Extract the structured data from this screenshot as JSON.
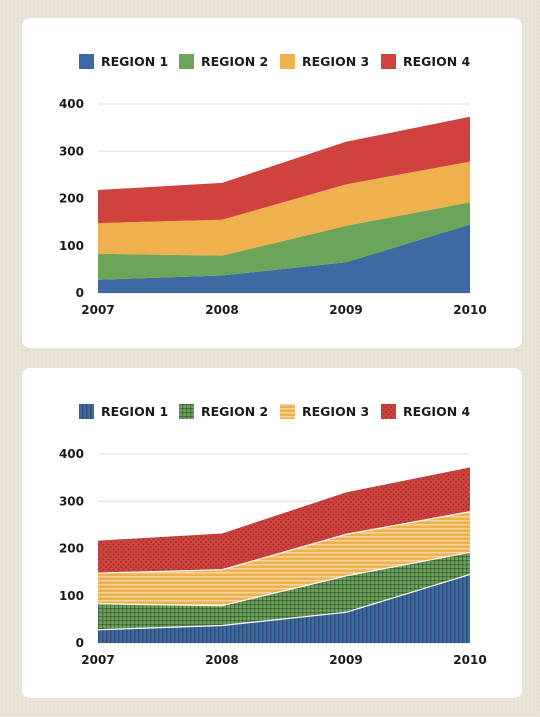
{
  "chart_data": [
    {
      "type": "area",
      "stacked": true,
      "style": "solid",
      "categories": [
        "2007",
        "2008",
        "2009",
        "2010"
      ],
      "series": [
        {
          "name": "REGION 1",
          "color": "#3d6aa3",
          "values": [
            28,
            37,
            65,
            145
          ]
        },
        {
          "name": "REGION 2",
          "color": "#6aa55a",
          "values": [
            55,
            42,
            77,
            47
          ]
        },
        {
          "name": "REGION 3",
          "color": "#efb14d",
          "values": [
            65,
            76,
            88,
            86
          ]
        },
        {
          "name": "REGION 4",
          "color": "#d0423e",
          "values": [
            70,
            78,
            90,
            95
          ]
        }
      ],
      "ylim": [
        0,
        400
      ],
      "yticks": [
        "0",
        "100",
        "200",
        "300",
        "400"
      ],
      "grid": true,
      "legend": "top"
    },
    {
      "type": "area",
      "stacked": true,
      "style": "patterned",
      "categories": [
        "2007",
        "2008",
        "2009",
        "2010"
      ],
      "series": [
        {
          "name": "REGION 1",
          "color": "#3d6aa3",
          "pattern": "vertical-lines",
          "values": [
            28,
            37,
            65,
            145
          ]
        },
        {
          "name": "REGION 2",
          "color": "#6aa55a",
          "pattern": "grid",
          "values": [
            55,
            42,
            77,
            47
          ]
        },
        {
          "name": "REGION 3",
          "color": "#efb14d",
          "pattern": "horizontal-lines",
          "values": [
            65,
            76,
            88,
            86
          ]
        },
        {
          "name": "REGION 4",
          "color": "#d0423e",
          "pattern": "dots",
          "values": [
            70,
            78,
            90,
            95
          ]
        }
      ],
      "ylim": [
        0,
        400
      ],
      "yticks": [
        "0",
        "100",
        "200",
        "300",
        "400"
      ],
      "grid": true,
      "legend": "top"
    }
  ]
}
